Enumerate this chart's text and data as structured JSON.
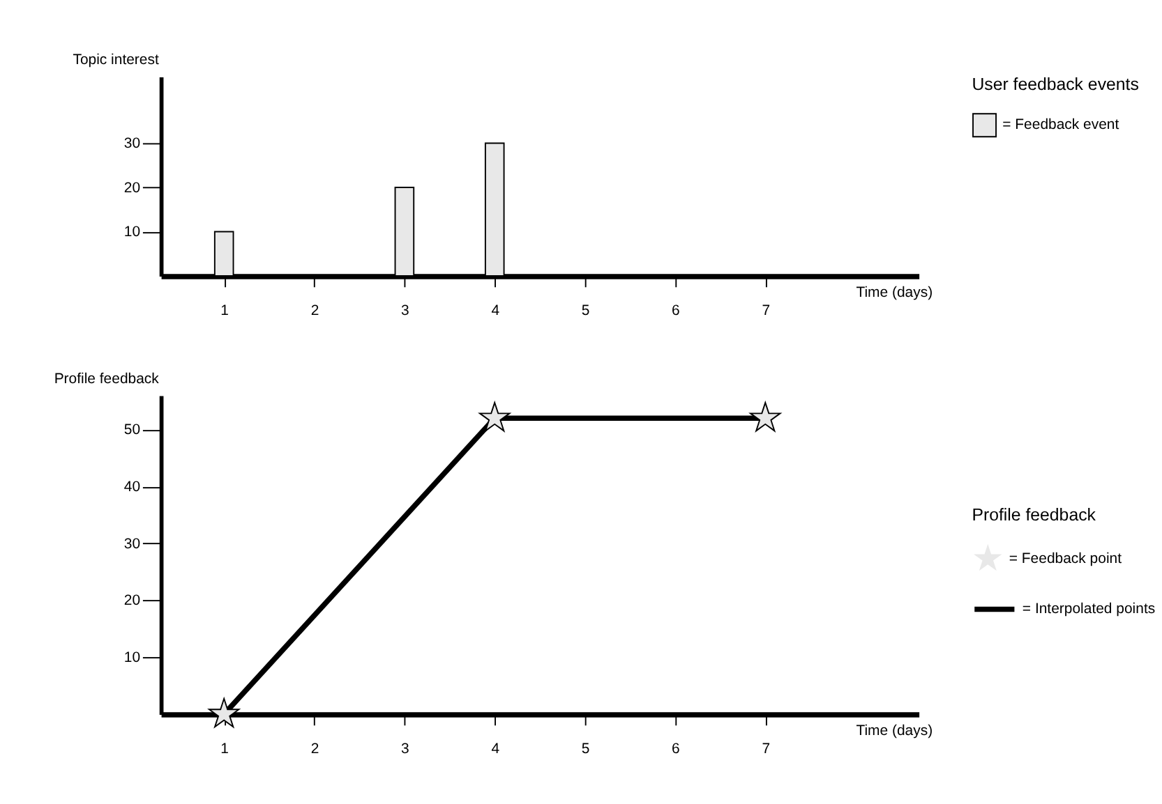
{
  "chart_data": [
    {
      "type": "bar",
      "ylabel": "Topic interest",
      "xlabel": "Time (days)",
      "legend_title": "User feedback events",
      "legend": "top right",
      "grid": false,
      "x": [
        1,
        3,
        4
      ],
      "series": [
        {
          "name": "= Feedback event",
          "color": "#e8e8e8",
          "values": [
            10,
            20,
            30
          ]
        }
      ],
      "xlim": [
        0.3,
        8.7
      ],
      "xticks": [
        1,
        2,
        3,
        4,
        5,
        6,
        7
      ],
      "ylim": [
        0,
        45
      ],
      "yticks": [
        10,
        20,
        30
      ]
    },
    {
      "type": "line",
      "ylabel": "Profile feedback",
      "xlabel": "Time (days)",
      "legend_title": "Profile feedback",
      "legend": "right",
      "grid": false,
      "x": [
        1,
        4,
        7
      ],
      "series": [
        {
          "name": "= Feedback point",
          "type": "scatter",
          "marker": "star",
          "color": "#e8e8e8",
          "values": [
            0,
            52,
            52
          ]
        },
        {
          "name": "= Interpolated points",
          "type": "line",
          "line_style": "solid",
          "color": "#000000",
          "values": [
            0,
            52,
            52
          ]
        }
      ],
      "xlim": [
        0.3,
        8.7
      ],
      "xticks": [
        1,
        2,
        3,
        4,
        5,
        6,
        7
      ],
      "ylim": [
        0,
        56
      ],
      "yticks": [
        10,
        20,
        30,
        40,
        50
      ]
    }
  ]
}
